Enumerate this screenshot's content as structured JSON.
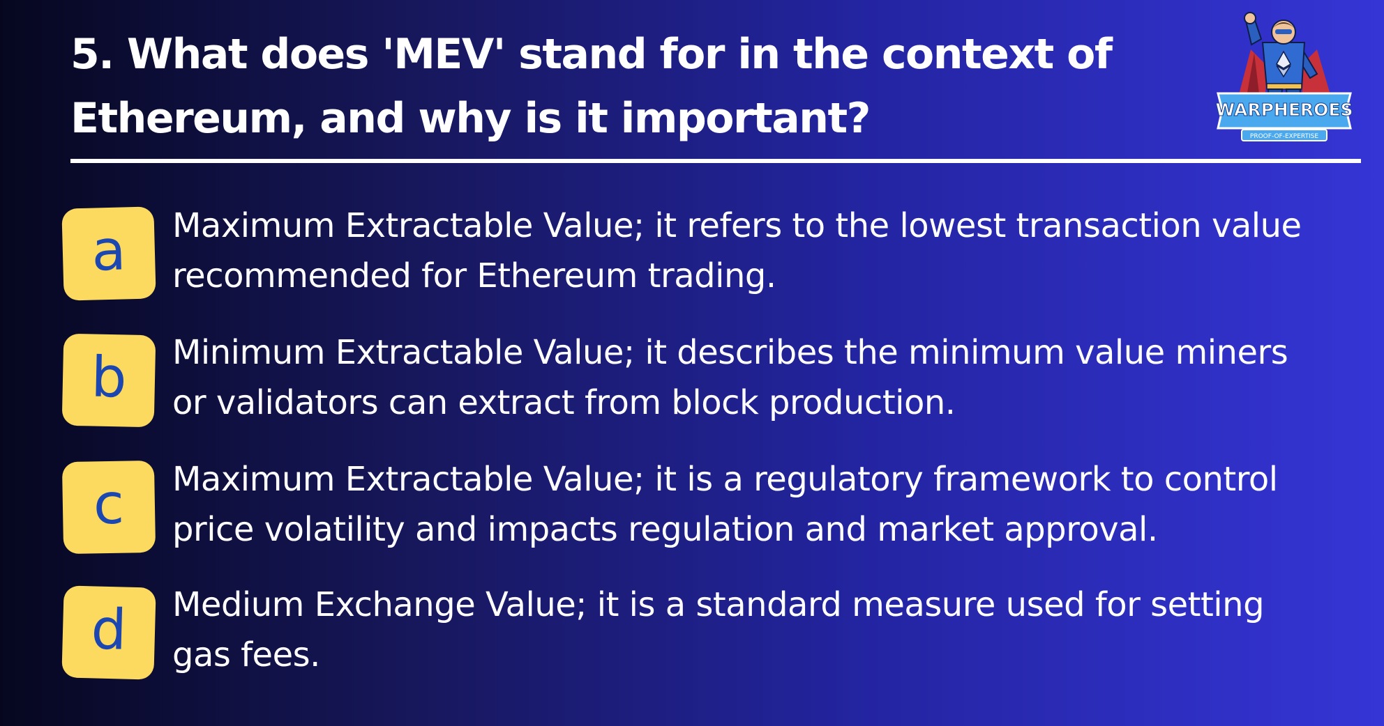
{
  "question": {
    "text": "5. What does 'MEV' stand for in the context of Ethereum, and why is it important?"
  },
  "logo": {
    "name": "WARPHEROES",
    "tagline": "PROOF-OF-EXPERTISE"
  },
  "options": [
    {
      "letter": "a",
      "text": "Maximum Extractable Value; it refers to the lowest transaction value recommended for Ethereum trading."
    },
    {
      "letter": "b",
      "text": "Minimum Extractable Value; it describes the minimum value miners or validators can extract from block production."
    },
    {
      "letter": "c",
      "text": "Maximum Extractable Value; it is a regulatory framework to control price volatility and impacts regulation and market approval."
    },
    {
      "letter": "d",
      "text": "Medium Exchange Value; it is a standard measure used for setting gas fees."
    }
  ],
  "colors": {
    "badge": "#fbda5f",
    "badge_text": "#1d47b0",
    "background_start": "#06071f",
    "background_end": "#3535d6",
    "text": "#ffffff"
  }
}
